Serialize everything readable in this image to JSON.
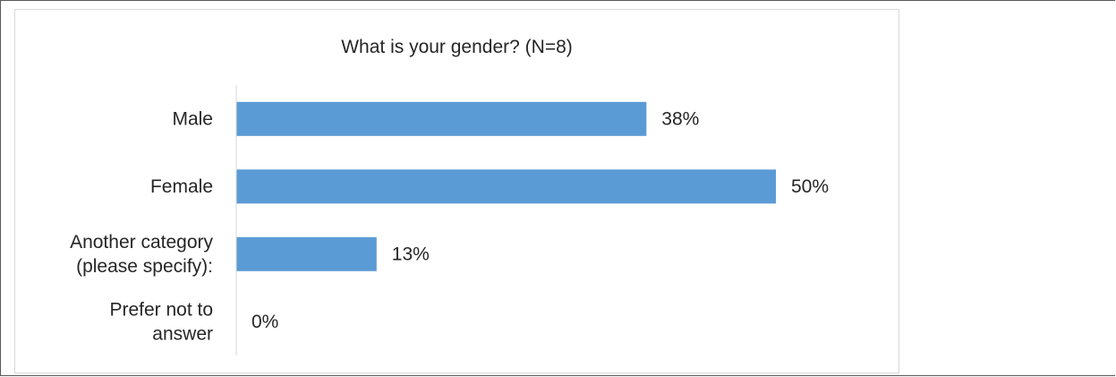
{
  "chart_data": {
    "type": "bar",
    "orientation": "horizontal",
    "title": "What is your gender? (N=8)",
    "categories": [
      [
        "Male"
      ],
      [
        "Female"
      ],
      [
        "Another category",
        "(please specify):"
      ],
      [
        "Prefer not to",
        "answer"
      ]
    ],
    "values": [
      38,
      50,
      13,
      0
    ],
    "value_labels": [
      "38%",
      "50%",
      "13%",
      "0%"
    ],
    "xlim": [
      0,
      100
    ],
    "grid": false,
    "legend": "none",
    "bar_color": "#5b9bd5",
    "axis_color": "#d9d9d9"
  }
}
